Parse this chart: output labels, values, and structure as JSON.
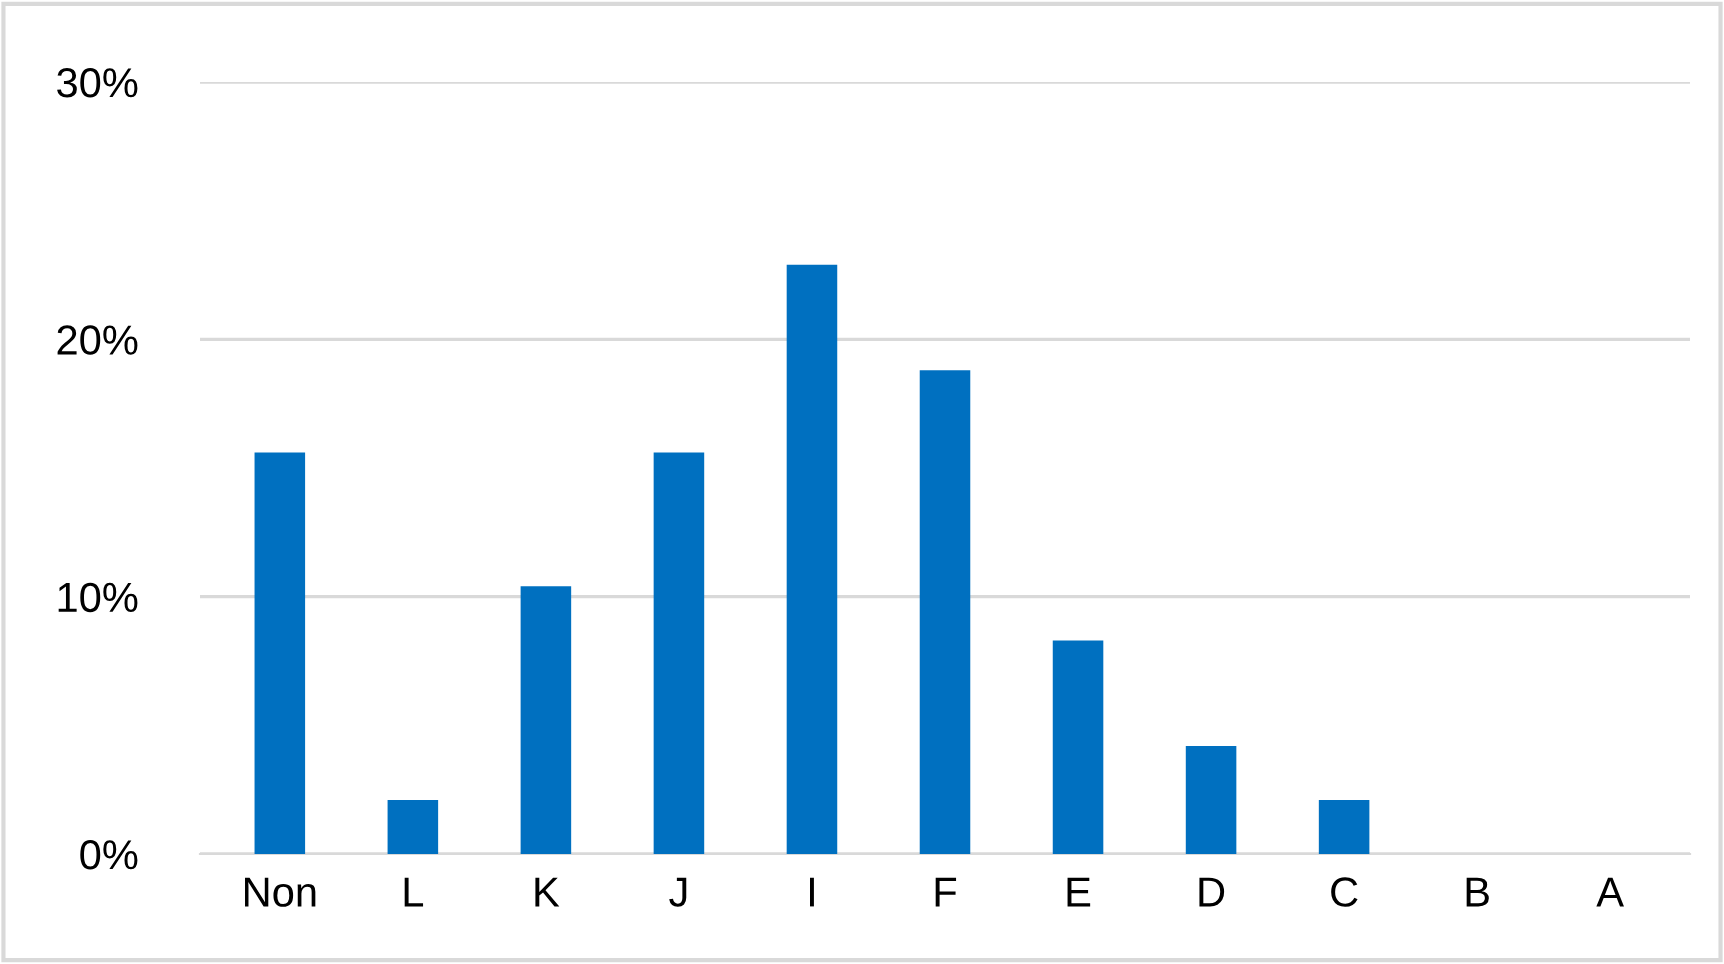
{
  "chart_data": {
    "type": "bar",
    "categories": [
      "Non",
      "L",
      "K",
      "J",
      "I",
      "F",
      "E",
      "D",
      "C",
      "B",
      "A"
    ],
    "values": [
      15.6,
      2.1,
      10.4,
      15.6,
      22.9,
      18.8,
      8.3,
      4.2,
      2.1,
      0,
      0
    ],
    "color": "#0070c0",
    "ylim": [
      0,
      30
    ],
    "yticks": [
      {
        "value": 0,
        "label": "0%"
      },
      {
        "value": 10,
        "label": "10%"
      },
      {
        "value": 20,
        "label": "20%"
      },
      {
        "value": 30,
        "label": "30%"
      }
    ],
    "grid": "y"
  }
}
